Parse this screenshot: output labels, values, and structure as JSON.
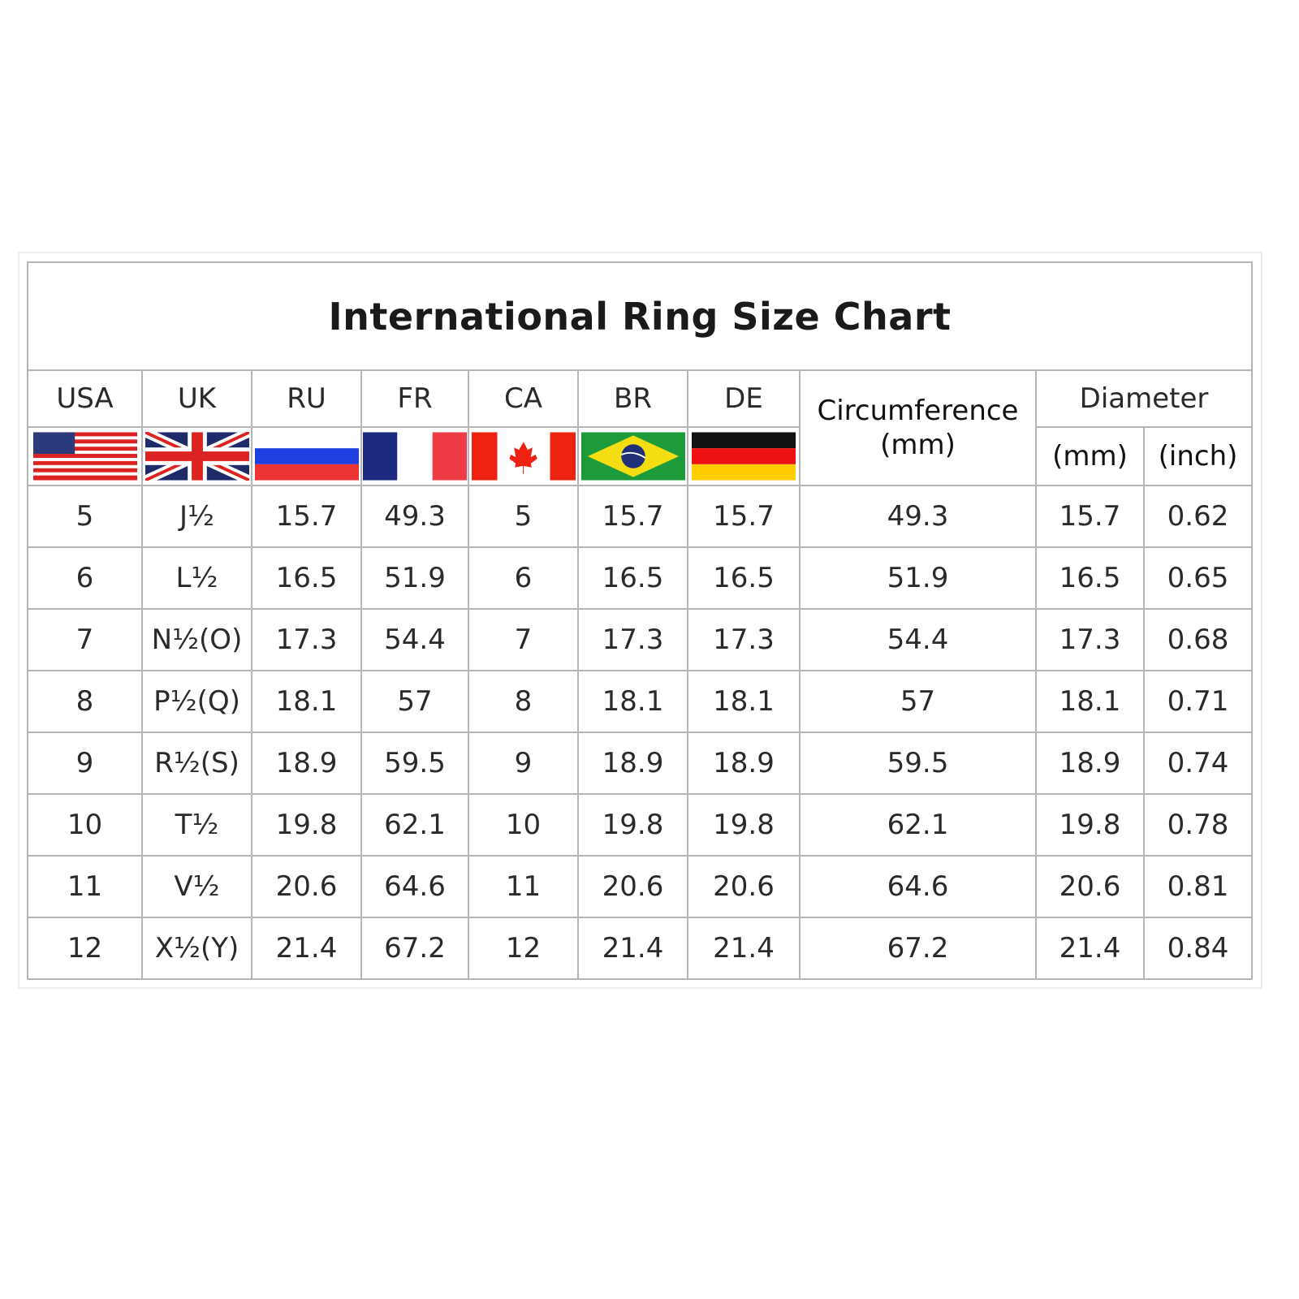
{
  "title": "International Ring Size Chart",
  "columns": {
    "usa": "USA",
    "uk": "UK",
    "ru": "RU",
    "fr": "FR",
    "ca": "CA",
    "br": "BR",
    "de": "DE",
    "circumference": "Circumference",
    "circumference_unit": "(mm)",
    "diameter": "Diameter",
    "diameter_mm": "(mm)",
    "diameter_inch": "(inch)"
  },
  "flags": [
    "usa-flag-icon",
    "uk-flag-icon",
    "russia-flag-icon",
    "france-flag-icon",
    "canada-flag-icon",
    "brazil-flag-icon",
    "germany-flag-icon"
  ],
  "rows": [
    [
      "5",
      "J½",
      "15.7",
      "49.3",
      "5",
      "15.7",
      "15.7",
      "49.3",
      "15.7",
      "0.62"
    ],
    [
      "6",
      "L½",
      "16.5",
      "51.9",
      "6",
      "16.5",
      "16.5",
      "51.9",
      "16.5",
      "0.65"
    ],
    [
      "7",
      "N½(O)",
      "17.3",
      "54.4",
      "7",
      "17.3",
      "17.3",
      "54.4",
      "17.3",
      "0.68"
    ],
    [
      "8",
      "P½(Q)",
      "18.1",
      "57",
      "8",
      "18.1",
      "18.1",
      "57",
      "18.1",
      "0.71"
    ],
    [
      "9",
      "R½(S)",
      "18.9",
      "59.5",
      "9",
      "18.9",
      "18.9",
      "59.5",
      "18.9",
      "0.74"
    ],
    [
      "10",
      "T½",
      "19.8",
      "62.1",
      "10",
      "19.8",
      "19.8",
      "62.1",
      "19.8",
      "0.78"
    ],
    [
      "11",
      "V½",
      "20.6",
      "64.6",
      "11",
      "20.6",
      "20.6",
      "64.6",
      "20.6",
      "0.81"
    ],
    [
      "12",
      "X½(Y)",
      "21.4",
      "67.2",
      "12",
      "21.4",
      "21.4",
      "67.2",
      "21.4",
      "0.84"
    ]
  ]
}
